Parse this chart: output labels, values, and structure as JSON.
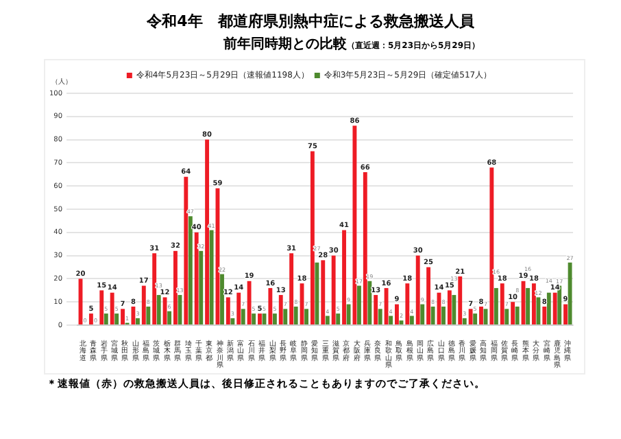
{
  "chart_data": {
    "type": "bar",
    "title": "令和4年　都道府県別熱中症による救急搬送人員",
    "subtitle": "前年同時期との比較",
    "annotations": [
      "（直近週：5月23日から5月29日）",
      "＊速報値（赤）の救急搬送人員は、後日修正されることもありますのでご了承ください。"
    ],
    "ylabel": "（人）",
    "categories": [
      "北海道",
      "青森県",
      "岩手県",
      "宮城県",
      "秋田県",
      "山形県",
      "福島県",
      "茨城県",
      "栃木県",
      "群馬県",
      "埼玉県",
      "千葉県",
      "東京都",
      "神奈川県",
      "新潟県",
      "富山県",
      "石川県",
      "福井県",
      "山梨県",
      "長野県",
      "岐阜県",
      "静岡県",
      "愛知県",
      "三重県",
      "滋賀県",
      "京都府",
      "大阪府",
      "兵庫県",
      "奈良県",
      "和歌山県",
      "鳥取県",
      "島根県",
      "岡山県",
      "広島県",
      "山口県",
      "徳島県",
      "香川県",
      "愛媛県",
      "高知県",
      "福岡県",
      "佐賀県",
      "長崎県",
      "熊本県",
      "大分県",
      "宮崎県",
      "鹿児島県",
      "沖縄県"
    ],
    "series": [
      {
        "name": "令和4年5月23日～5月29日（速報値1198人）",
        "color": "#ee1c25",
        "values": [
          20,
          5,
          15,
          14,
          7,
          8,
          17,
          31,
          12,
          32,
          64,
          40,
          80,
          59,
          12,
          14,
          19,
          5,
          16,
          13,
          31,
          18,
          75,
          28,
          30,
          41,
          86,
          66,
          13,
          16,
          9,
          18,
          30,
          25,
          14,
          15,
          21,
          7,
          8,
          68,
          18,
          10,
          19,
          18,
          8,
          14,
          9
        ]
      },
      {
        "name": "令和3年5月23日～5月29日（確定値517人）",
        "color": "#4e8a2e",
        "values": [
          0,
          0,
          5,
          5,
          1,
          3,
          8,
          13,
          6,
          13,
          47,
          32,
          41,
          22,
          3,
          7,
          5,
          5,
          5,
          7,
          8,
          7,
          27,
          4,
          5,
          9,
          17,
          19,
          7,
          4,
          2,
          4,
          9,
          8,
          8,
          13,
          3,
          5,
          7,
          16,
          7,
          8,
          16,
          12,
          14,
          17,
          27
        ]
      }
    ],
    "ylim": [
      0,
      100
    ],
    "yticks": [
      0,
      10,
      20,
      30,
      40,
      50,
      60,
      70,
      80,
      90,
      100
    ],
    "grid": "y",
    "legend": "top",
    "data_labels": true
  }
}
